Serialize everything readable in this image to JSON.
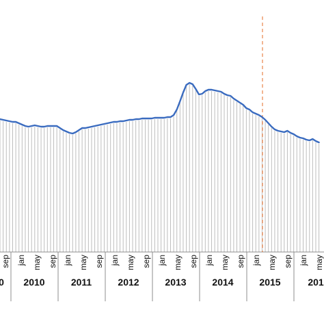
{
  "chart_data": {
    "type": "line",
    "title": "",
    "xlabel": "",
    "ylabel": "",
    "grid": false,
    "series_color": "#3a6bbf",
    "marker_line_color": "#e8844a",
    "bar_color": "#bdbdbd",
    "axis_color": "#8c8c8c",
    "marker_at": "2015 may",
    "month_ticks": [
      {
        "year": "2009",
        "month": "sep"
      },
      {
        "year": "2010",
        "month": "jan"
      },
      {
        "year": "2010",
        "month": "may"
      },
      {
        "year": "2010",
        "month": "sep"
      },
      {
        "year": "2011",
        "month": "jan"
      },
      {
        "year": "2011",
        "month": "may"
      },
      {
        "year": "2011",
        "month": "sep"
      },
      {
        "year": "2012",
        "month": "jan"
      },
      {
        "year": "2012",
        "month": "may"
      },
      {
        "year": "2012",
        "month": "sep"
      },
      {
        "year": "2013",
        "month": "jan"
      },
      {
        "year": "2013",
        "month": "may"
      },
      {
        "year": "2013",
        "month": "sep"
      },
      {
        "year": "2014",
        "month": "jan"
      },
      {
        "year": "2014",
        "month": "may"
      },
      {
        "year": "2014",
        "month": "sep"
      },
      {
        "year": "2015",
        "month": "jan"
      },
      {
        "year": "2015",
        "month": "may"
      },
      {
        "year": "2015",
        "month": "sep"
      },
      {
        "year": "2016",
        "month": "jan"
      },
      {
        "year": "2016",
        "month": "may"
      }
    ],
    "year_labels": [
      "0",
      "2010",
      "2011",
      "2012",
      "2013",
      "2014",
      "2015",
      "201"
    ],
    "series": [
      {
        "values": [
          174,
          175,
          176,
          177,
          178,
          178,
          180,
          182,
          184,
          185,
          184,
          183,
          184,
          185,
          185,
          184,
          184,
          184,
          184,
          187,
          190,
          192,
          194,
          195,
          193,
          190,
          187,
          187,
          186,
          185,
          184,
          183,
          182,
          181,
          180,
          179,
          178,
          178,
          177,
          177,
          176,
          175,
          175,
          174,
          174,
          173,
          173,
          173,
          173,
          172,
          172,
          172,
          172,
          171,
          171,
          168,
          160,
          148,
          135,
          124,
          121,
          123,
          130,
          138,
          137,
          133,
          131,
          131,
          132,
          133,
          134,
          137,
          139,
          140,
          144,
          147,
          150,
          153,
          158,
          160,
          164,
          166,
          168,
          171,
          175,
          180,
          185,
          189,
          191,
          192,
          193,
          191,
          194,
          196,
          199,
          201,
          202,
          204,
          205,
          203,
          206,
          208
        ]
      }
    ]
  }
}
